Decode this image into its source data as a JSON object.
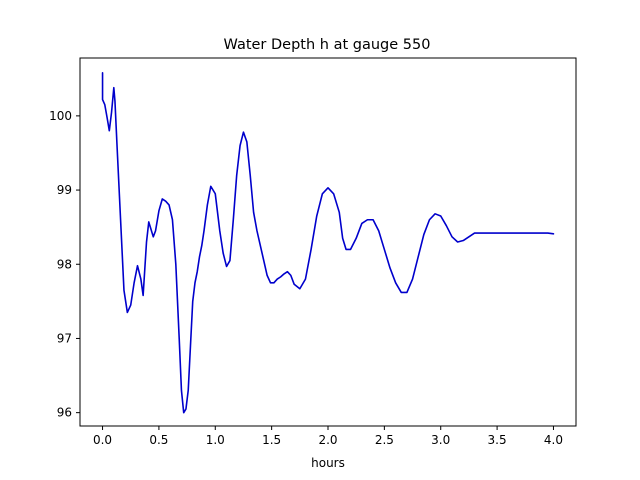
{
  "chart_data": {
    "type": "line",
    "title": "Water Depth h at gauge 550",
    "xlabel": "hours",
    "ylabel": "",
    "xlim": [
      -0.2,
      4.2
    ],
    "ylim": [
      95.82,
      100.78
    ],
    "xticks": [
      0.0,
      0.5,
      1.0,
      1.5,
      2.0,
      2.5,
      3.0,
      3.5,
      4.0
    ],
    "xtick_labels": [
      "0.0",
      "0.5",
      "1.0",
      "1.5",
      "2.0",
      "2.5",
      "3.0",
      "3.5",
      "4.0"
    ],
    "yticks": [
      96,
      97,
      98,
      99,
      100
    ],
    "ytick_labels": [
      "96",
      "97",
      "98",
      "99",
      "100"
    ],
    "grid": false,
    "series": [
      {
        "color": "#0000cc",
        "x": [
          0.0,
          0.0,
          0.02,
          0.04,
          0.06,
          0.08,
          0.1,
          0.11,
          0.13,
          0.16,
          0.19,
          0.22,
          0.25,
          0.28,
          0.31,
          0.34,
          0.36,
          0.39,
          0.41,
          0.43,
          0.45,
          0.47,
          0.5,
          0.53,
          0.56,
          0.59,
          0.62,
          0.65,
          0.68,
          0.7,
          0.72,
          0.74,
          0.76,
          0.78,
          0.8,
          0.82,
          0.84,
          0.86,
          0.88,
          0.9,
          0.93,
          0.96,
          1.0,
          1.04,
          1.07,
          1.1,
          1.13,
          1.16,
          1.19,
          1.22,
          1.25,
          1.28,
          1.31,
          1.34,
          1.37,
          1.4,
          1.43,
          1.46,
          1.49,
          1.52,
          1.55,
          1.58,
          1.61,
          1.64,
          1.67,
          1.7,
          1.75,
          1.8,
          1.85,
          1.9,
          1.95,
          2.0,
          2.05,
          2.1,
          2.13,
          2.16,
          2.2,
          2.25,
          2.3,
          2.35,
          2.4,
          2.45,
          2.5,
          2.55,
          2.6,
          2.65,
          2.7,
          2.75,
          2.8,
          2.85,
          2.9,
          2.95,
          3.0,
          3.05,
          3.1,
          3.15,
          3.2,
          3.25,
          3.3,
          3.35,
          3.4,
          3.45,
          3.5,
          3.55,
          3.6,
          3.65,
          3.7,
          3.75,
          3.8,
          3.85,
          3.9,
          3.95,
          4.0
        ],
        "y": [
          100.58,
          100.22,
          100.15,
          99.98,
          99.8,
          100.05,
          100.38,
          100.2,
          99.55,
          98.6,
          97.65,
          97.35,
          97.45,
          97.75,
          97.98,
          97.8,
          97.58,
          98.3,
          98.57,
          98.47,
          98.37,
          98.45,
          98.72,
          98.88,
          98.85,
          98.8,
          98.6,
          98.0,
          97.0,
          96.3,
          96.0,
          96.05,
          96.3,
          96.9,
          97.5,
          97.75,
          97.9,
          98.1,
          98.25,
          98.45,
          98.8,
          99.05,
          98.95,
          98.45,
          98.15,
          97.97,
          98.05,
          98.6,
          99.2,
          99.6,
          99.78,
          99.65,
          99.2,
          98.7,
          98.45,
          98.25,
          98.05,
          97.85,
          97.75,
          97.75,
          97.8,
          97.83,
          97.87,
          97.9,
          97.85,
          97.73,
          97.67,
          97.8,
          98.2,
          98.65,
          98.95,
          99.03,
          98.95,
          98.7,
          98.35,
          98.2,
          98.2,
          98.35,
          98.55,
          98.6,
          98.6,
          98.45,
          98.2,
          97.95,
          97.75,
          97.62,
          97.62,
          97.8,
          98.1,
          98.4,
          98.6,
          98.68,
          98.65,
          98.52,
          98.37,
          98.3,
          98.32,
          98.37,
          98.42,
          98.42,
          98.42,
          98.42,
          98.42,
          98.42,
          98.42,
          98.42,
          98.42,
          98.42,
          98.42,
          98.42,
          98.42,
          98.42,
          98.41
        ]
      }
    ]
  }
}
